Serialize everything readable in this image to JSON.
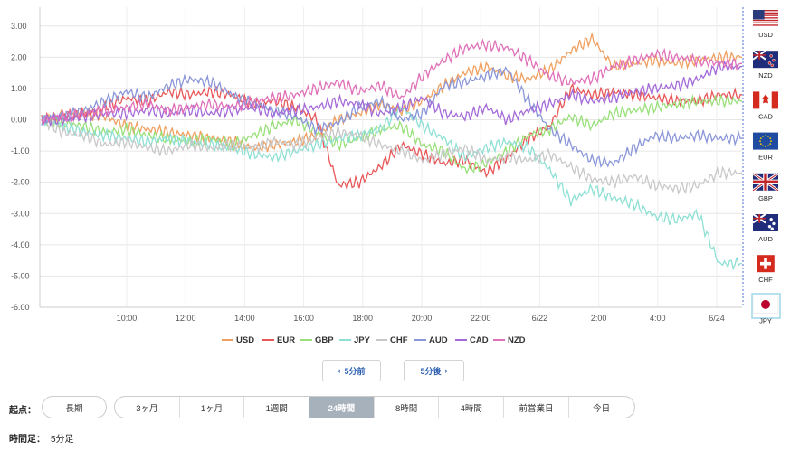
{
  "chart_data": {
    "type": "line",
    "ylim": [
      -6,
      3.6
    ],
    "y_ticks": [
      "3.00",
      "2.00",
      "1.00",
      "0.00",
      "-1.00",
      "-2.00",
      "-3.00",
      "-4.00",
      "-5.00",
      "-6.00"
    ],
    "x_ticks": [
      "10:00",
      "12:00",
      "14:00",
      "16:00",
      "18:00",
      "20:00",
      "22:00",
      "6/22",
      "2:00",
      "4:00",
      "6/24"
    ],
    "grid": true,
    "legend_position": "bottom",
    "series": [
      {
        "name": "USD",
        "color": "#f0a060",
        "values": [
          0.0,
          0.1,
          0.2,
          0.1,
          -0.2,
          -0.3,
          -0.4,
          -0.5,
          -0.6,
          -0.7,
          -0.9,
          -0.8,
          -0.7,
          -0.5,
          0.0,
          0.2,
          0.5,
          0.3,
          0.6,
          1.1,
          1.5,
          1.7,
          1.4,
          1.3,
          1.6,
          2.2,
          2.6,
          1.7,
          1.8,
          1.9,
          1.8,
          1.9,
          2.0,
          2.0
        ]
      },
      {
        "name": "EUR",
        "color": "#e8585a",
        "values": [
          0.0,
          0.1,
          0.2,
          0.4,
          0.7,
          0.6,
          0.9,
          0.8,
          0.9,
          0.8,
          0.5,
          0.6,
          0.4,
          0.0,
          -2.1,
          -2.0,
          -1.5,
          -0.8,
          -1.1,
          -1.4,
          -1.3,
          -1.7,
          -1.2,
          -0.6,
          -0.2,
          1.0,
          0.8,
          0.9,
          0.8,
          0.7,
          0.6,
          0.6,
          0.8,
          0.8
        ]
      },
      {
        "name": "GBP",
        "color": "#99e07a",
        "values": [
          0.0,
          -0.1,
          -0.2,
          -0.4,
          -0.3,
          -0.5,
          -0.6,
          -0.7,
          -0.6,
          -0.8,
          -0.5,
          -0.2,
          0.0,
          -0.4,
          -0.8,
          -0.6,
          -0.3,
          -0.2,
          -0.8,
          -1.0,
          -1.6,
          -1.4,
          -1.0,
          -0.5,
          -0.3,
          0.1,
          -0.2,
          0.2,
          0.3,
          0.4,
          0.5,
          0.6,
          0.6,
          0.6
        ]
      },
      {
        "name": "JPY",
        "color": "#8ee0d4",
        "values": [
          0.0,
          -0.2,
          -0.4,
          -0.5,
          -0.6,
          -0.7,
          -0.6,
          -0.7,
          -0.8,
          -0.9,
          -1.1,
          -1.2,
          -1.0,
          -0.8,
          -0.6,
          -0.5,
          -0.3,
          0.4,
          -0.2,
          -0.6,
          -1.2,
          -0.9,
          -0.7,
          -0.9,
          -1.6,
          -2.6,
          -2.2,
          -2.5,
          -2.7,
          -3.1,
          -3.2,
          -3.0,
          -4.6,
          -4.6
        ]
      },
      {
        "name": "CHF",
        "color": "#c8c8c8",
        "values": [
          0.0,
          -0.4,
          -0.5,
          -0.8,
          -0.7,
          -0.9,
          -1.0,
          -0.8,
          -0.9,
          -0.8,
          -0.9,
          -0.7,
          -0.8,
          -0.6,
          -0.4,
          -0.5,
          -0.8,
          -1.0,
          -1.3,
          -1.1,
          -0.9,
          -1.3,
          -1.2,
          -1.3,
          -1.1,
          -1.5,
          -1.9,
          -2.0,
          -1.8,
          -2.1,
          -2.2,
          -2.1,
          -1.7,
          -1.7
        ]
      },
      {
        "name": "AUD",
        "color": "#8a96d8",
        "values": [
          0.0,
          0.1,
          0.3,
          0.6,
          0.9,
          0.7,
          1.1,
          1.3,
          1.2,
          0.8,
          0.5,
          0.3,
          0.1,
          -0.3,
          -0.1,
          0.4,
          0.6,
          0.0,
          0.2,
          1.1,
          1.2,
          1.4,
          1.6,
          0.6,
          -0.3,
          -0.8,
          -1.3,
          -1.4,
          -0.9,
          -0.5,
          -0.6,
          -0.5,
          -0.6,
          -0.6
        ]
      },
      {
        "name": "CAD",
        "color": "#a46ad8",
        "values": [
          0.0,
          0.0,
          0.1,
          0.2,
          0.2,
          0.3,
          0.2,
          0.3,
          0.2,
          0.3,
          0.4,
          0.2,
          0.3,
          0.4,
          0.6,
          0.5,
          0.2,
          0.4,
          0.7,
          0.2,
          0.1,
          0.4,
          0.0,
          0.3,
          0.5,
          0.8,
          0.6,
          0.7,
          0.9,
          1.0,
          1.1,
          1.3,
          1.7,
          1.7
        ]
      },
      {
        "name": "NZD",
        "color": "#e070b8",
        "values": [
          0.0,
          0.1,
          0.2,
          0.3,
          0.4,
          0.5,
          0.3,
          0.4,
          0.5,
          0.4,
          0.6,
          0.7,
          0.8,
          1.0,
          1.2,
          0.9,
          1.1,
          0.7,
          1.4,
          1.9,
          2.3,
          2.4,
          2.3,
          1.9,
          1.4,
          1.2,
          1.3,
          1.7,
          1.9,
          2.1,
          2.0,
          1.9,
          1.8,
          1.8
        ]
      }
    ]
  },
  "flags": [
    {
      "code": "USD",
      "icon": "us-flag-icon"
    },
    {
      "code": "NZD",
      "icon": "nz-flag-icon"
    },
    {
      "code": "CAD",
      "icon": "ca-flag-icon"
    },
    {
      "code": "EUR",
      "icon": "eu-flag-icon"
    },
    {
      "code": "GBP",
      "icon": "gb-flag-icon"
    },
    {
      "code": "AUD",
      "icon": "au-flag-icon"
    },
    {
      "code": "CHF",
      "icon": "ch-flag-icon"
    },
    {
      "code": "JPY",
      "icon": "jp-flag-icon"
    }
  ],
  "nav": {
    "prev_label": "5分前",
    "next_label": "5分後"
  },
  "period": {
    "label": "起点：",
    "long_label": "長期",
    "options": [
      "3ヶ月",
      "1ヶ月",
      "1週間",
      "24時間",
      "8時間",
      "4時間",
      "前営業日",
      "今日"
    ],
    "selected": "24時間"
  },
  "timeframe": {
    "label": "時間足：",
    "value": "5分足"
  }
}
